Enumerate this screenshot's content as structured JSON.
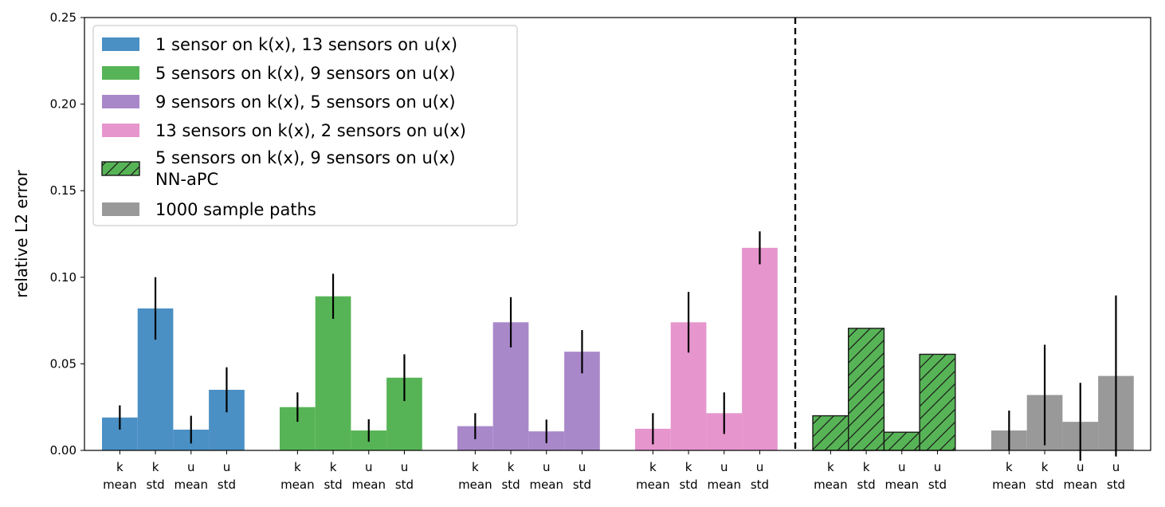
{
  "chart_data": {
    "type": "bar",
    "title": "",
    "xlabel": "",
    "ylabel": "relative L2 error",
    "ylim": [
      0,
      0.25
    ],
    "yticks": [
      "0.00",
      "0.05",
      "0.10",
      "0.15",
      "0.20",
      "0.25"
    ],
    "grid": false,
    "legend_position": "top-left",
    "bar_labels": [
      [
        "k",
        "mean"
      ],
      [
        "k",
        "std"
      ],
      [
        "u",
        "mean"
      ],
      [
        "u",
        "std"
      ]
    ],
    "series": [
      {
        "name": "1 sensor on k(x), 13 sensors on u(x)",
        "color": "#4a90c4",
        "hatch": false,
        "values": [
          0.019,
          0.082,
          0.012,
          0.035
        ],
        "errors": [
          0.007,
          0.018,
          0.008,
          0.013
        ]
      },
      {
        "name": "5 sensors on k(x), 9 sensors on u(x)",
        "color": "#57b456",
        "hatch": false,
        "values": [
          0.025,
          0.089,
          0.0115,
          0.042
        ],
        "errors": [
          0.0085,
          0.013,
          0.0065,
          0.0135
        ]
      },
      {
        "name": "9 sensors on k(x), 5 sensors on u(x)",
        "color": "#a988ca",
        "hatch": false,
        "values": [
          0.014,
          0.074,
          0.011,
          0.057
        ],
        "errors": [
          0.0075,
          0.0145,
          0.0068,
          0.0125
        ]
      },
      {
        "name": "13 sensors on k(x), 2 sensors on u(x)",
        "color": "#e695cd",
        "hatch": false,
        "values": [
          0.0125,
          0.074,
          0.0215,
          0.117
        ],
        "errors": [
          0.009,
          0.0175,
          0.012,
          0.0095
        ]
      },
      {
        "name": "5 sensors on k(x), 9 sensors on u(x)\nNN-aPC",
        "color": "#57b456",
        "hatch": true,
        "values": [
          0.02,
          0.0705,
          0.0105,
          0.0555
        ],
        "errors": null
      },
      {
        "name": "1000 sample paths",
        "color": "#999999",
        "hatch": false,
        "values": [
          0.0115,
          0.032,
          0.0165,
          0.043
        ],
        "errors": [
          0.0115,
          0.029,
          0.0225,
          0.0465
        ]
      }
    ],
    "divider_after_group": 4
  }
}
